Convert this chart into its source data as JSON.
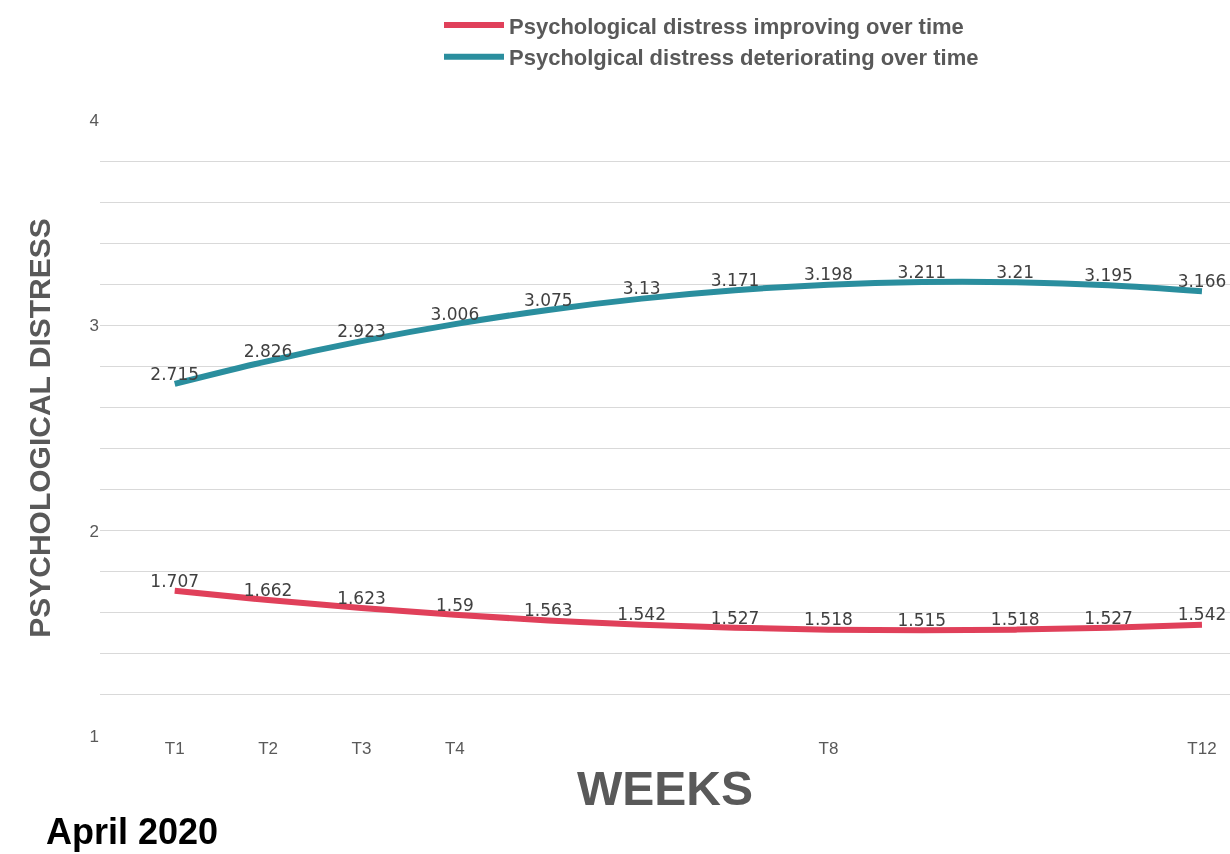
{
  "chart_data": {
    "type": "line",
    "xlabel": "WEEKS",
    "ylabel": "PSYCHOLOGICAL DISTRESS",
    "categories": [
      "T1",
      "T2",
      "T3",
      "T4",
      null,
      null,
      null,
      "T8",
      null,
      null,
      null,
      "T12"
    ],
    "series": [
      {
        "name": "Psychological distress improving over time",
        "color": "#e0405a",
        "values": [
          1.707,
          1.662,
          1.623,
          1.59,
          1.563,
          1.542,
          1.527,
          1.518,
          1.515,
          1.518,
          1.527,
          1.542
        ]
      },
      {
        "name": "Psycholgical distress deteriorating over time",
        "color": "#2a8e9e",
        "values": [
          2.715,
          2.826,
          2.923,
          3.006,
          3.075,
          3.13,
          3.171,
          3.198,
          3.211,
          3.21,
          3.195,
          3.166
        ]
      }
    ],
    "ylim": [
      1,
      4
    ],
    "yticks": [
      1,
      {
        "value": 1.2,
        "label": null
      },
      {
        "value": 1.4,
        "label": null
      },
      {
        "value": 1.6,
        "label": null
      },
      {
        "value": 1.8,
        "label": null
      },
      2,
      {
        "value": 2.2,
        "label": null
      },
      {
        "value": 2.4,
        "label": null
      },
      {
        "value": 2.6,
        "label": null
      },
      {
        "value": 2.8,
        "label": null
      },
      3,
      {
        "value": 3.2,
        "label": null
      },
      {
        "value": 3.4,
        "label": null
      },
      {
        "value": 3.6,
        "label": null
      },
      {
        "value": 3.8,
        "label": null
      },
      4
    ],
    "grid": "y",
    "legend": "top",
    "marker": "none",
    "line_style": "solid",
    "data_labels": true,
    "annotations": [
      "April 2020"
    ]
  }
}
